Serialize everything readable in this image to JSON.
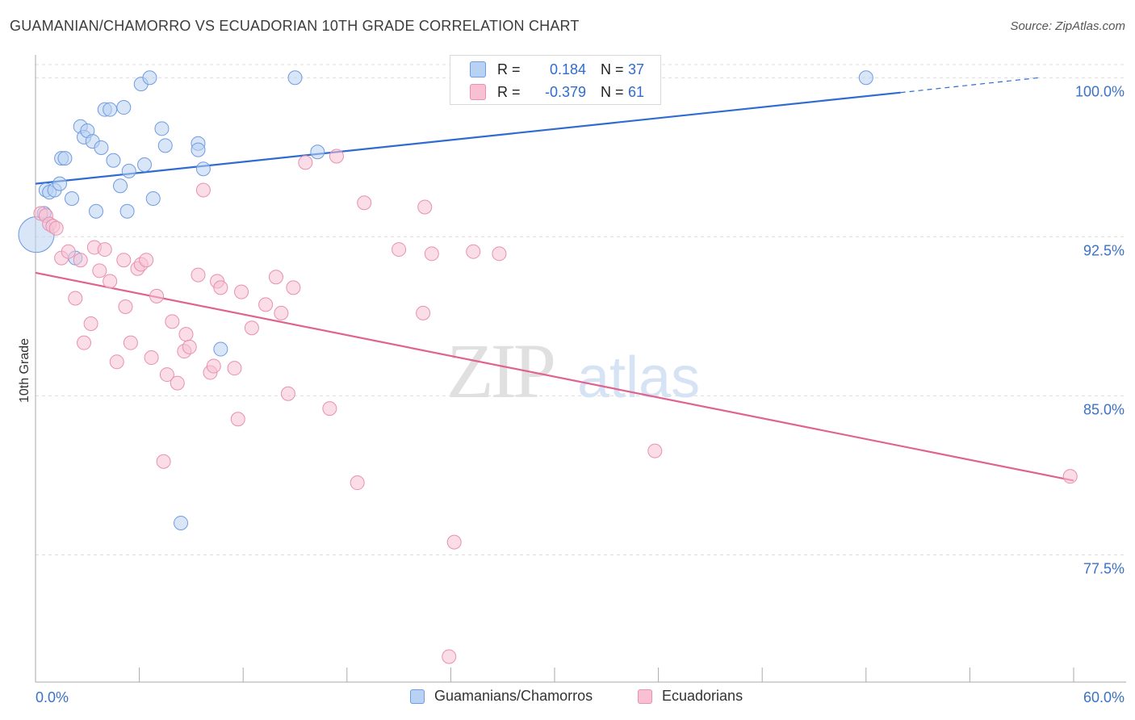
{
  "title": "GUAMANIAN/CHAMORRO VS ECUADORIAN 10TH GRADE CORRELATION CHART",
  "source": "Source: ZipAtlas.com",
  "watermark": {
    "zip": "ZIP",
    "atlas": "atlas"
  },
  "colors": {
    "blue": "#2f6bd0",
    "blue_fill": "#b9d1f3",
    "pink": "#e0628f",
    "pink_fill": "#f7c1d3",
    "grid": "#dcdcdc",
    "tick_label": "#3a72c8"
  },
  "stats": [
    {
      "r_label": "R =",
      "r_value": "0.184",
      "n_label": "N =",
      "n_value": "37"
    },
    {
      "r_label": "R =",
      "r_value": "-0.379",
      "n_label": "N =",
      "n_value": "61"
    }
  ],
  "legend": [
    "Guamanians/Chamorros",
    "Ecuadorians"
  ],
  "chart_data": {
    "type": "scatter",
    "title": "GUAMANIAN/CHAMORRO VS ECUADORIAN 10TH GRADE CORRELATION CHART",
    "xlabel": "",
    "ylabel": "10th Grade",
    "xlim": [
      0,
      60
    ],
    "ylim": [
      71.5,
      101
    ],
    "x_tick_labels": [
      "0.0%",
      "60.0%"
    ],
    "y_ticks": [
      77.5,
      85.0,
      92.5,
      100.0
    ],
    "y_tick_labels": [
      "77.5%",
      "85.0%",
      "92.5%",
      "100.0%"
    ],
    "grid": "horizontal dashed",
    "legend_position": "bottom",
    "series": [
      {
        "name": "Guamanians/Chamorros",
        "color": "#2f6bd0",
        "r": 0.184,
        "n": 37,
        "trend": {
          "x0": 0,
          "y0": 95.0,
          "x1": 50,
          "y1": 99.3,
          "dash_to_x": 58,
          "dash_to_y": 100.0
        },
        "points": [
          [
            0.05,
            92.6
          ],
          [
            0.5,
            93.6
          ],
          [
            0.6,
            94.7
          ],
          [
            0.8,
            94.6
          ],
          [
            1.1,
            94.7
          ],
          [
            1.4,
            95.0
          ],
          [
            1.5,
            96.2
          ],
          [
            1.7,
            96.2
          ],
          [
            2.1,
            94.3
          ],
          [
            2.3,
            91.5
          ],
          [
            2.6,
            97.7
          ],
          [
            2.8,
            97.2
          ],
          [
            3.0,
            97.5
          ],
          [
            3.3,
            97.0
          ],
          [
            3.5,
            93.7
          ],
          [
            3.8,
            96.7
          ],
          [
            4.0,
            98.5
          ],
          [
            4.3,
            98.5
          ],
          [
            4.5,
            96.1
          ],
          [
            4.9,
            94.9
          ],
          [
            5.1,
            98.6
          ],
          [
            5.3,
            93.7
          ],
          [
            5.4,
            95.6
          ],
          [
            6.1,
            99.7
          ],
          [
            6.3,
            95.9
          ],
          [
            6.6,
            100.0
          ],
          [
            6.8,
            94.3
          ],
          [
            7.3,
            97.6
          ],
          [
            7.5,
            96.8
          ],
          [
            8.4,
            79.0
          ],
          [
            9.4,
            96.9
          ],
          [
            9.4,
            96.6
          ],
          [
            9.7,
            95.7
          ],
          [
            10.7,
            87.2
          ],
          [
            15.0,
            100.0
          ],
          [
            16.3,
            96.5
          ],
          [
            48.0,
            100.0
          ]
        ]
      },
      {
        "name": "Ecuadorians",
        "color": "#e0628f",
        "r": -0.379,
        "n": 61,
        "trend": {
          "x0": 0,
          "y0": 90.8,
          "x1": 60,
          "y1": 81.0
        },
        "points": [
          [
            0.3,
            93.6
          ],
          [
            0.6,
            93.5
          ],
          [
            0.8,
            93.1
          ],
          [
            1.0,
            93.0
          ],
          [
            1.2,
            92.9
          ],
          [
            1.5,
            91.5
          ],
          [
            1.9,
            91.8
          ],
          [
            2.3,
            89.6
          ],
          [
            2.6,
            91.4
          ],
          [
            2.8,
            87.5
          ],
          [
            3.2,
            88.4
          ],
          [
            3.4,
            92.0
          ],
          [
            3.7,
            90.9
          ],
          [
            4.0,
            91.9
          ],
          [
            4.3,
            90.4
          ],
          [
            4.7,
            86.6
          ],
          [
            5.1,
            91.4
          ],
          [
            5.2,
            89.2
          ],
          [
            5.5,
            87.5
          ],
          [
            5.9,
            91.0
          ],
          [
            6.1,
            91.2
          ],
          [
            6.4,
            91.4
          ],
          [
            6.7,
            86.8
          ],
          [
            7.0,
            89.7
          ],
          [
            7.4,
            81.9
          ],
          [
            7.6,
            86.0
          ],
          [
            7.9,
            88.5
          ],
          [
            8.2,
            85.6
          ],
          [
            8.6,
            87.1
          ],
          [
            8.7,
            87.9
          ],
          [
            8.9,
            87.3
          ],
          [
            9.4,
            90.7
          ],
          [
            9.7,
            94.7
          ],
          [
            10.1,
            86.1
          ],
          [
            10.3,
            86.4
          ],
          [
            10.5,
            90.4
          ],
          [
            10.7,
            90.1
          ],
          [
            11.5,
            86.3
          ],
          [
            11.7,
            83.9
          ],
          [
            11.9,
            89.9
          ],
          [
            12.5,
            88.2
          ],
          [
            13.3,
            89.3
          ],
          [
            13.9,
            90.6
          ],
          [
            14.2,
            88.9
          ],
          [
            14.6,
            85.1
          ],
          [
            14.9,
            90.1
          ],
          [
            15.6,
            96.0
          ],
          [
            17.0,
            84.4
          ],
          [
            17.4,
            96.3
          ],
          [
            18.6,
            80.9
          ],
          [
            19.0,
            94.1
          ],
          [
            21.0,
            91.9
          ],
          [
            22.4,
            88.9
          ],
          [
            22.5,
            93.9
          ],
          [
            22.9,
            91.7
          ],
          [
            24.2,
            78.1
          ],
          [
            23.9,
            72.7
          ],
          [
            25.3,
            91.8
          ],
          [
            26.8,
            91.7
          ],
          [
            35.8,
            82.4
          ],
          [
            59.8,
            81.2
          ]
        ]
      }
    ]
  }
}
